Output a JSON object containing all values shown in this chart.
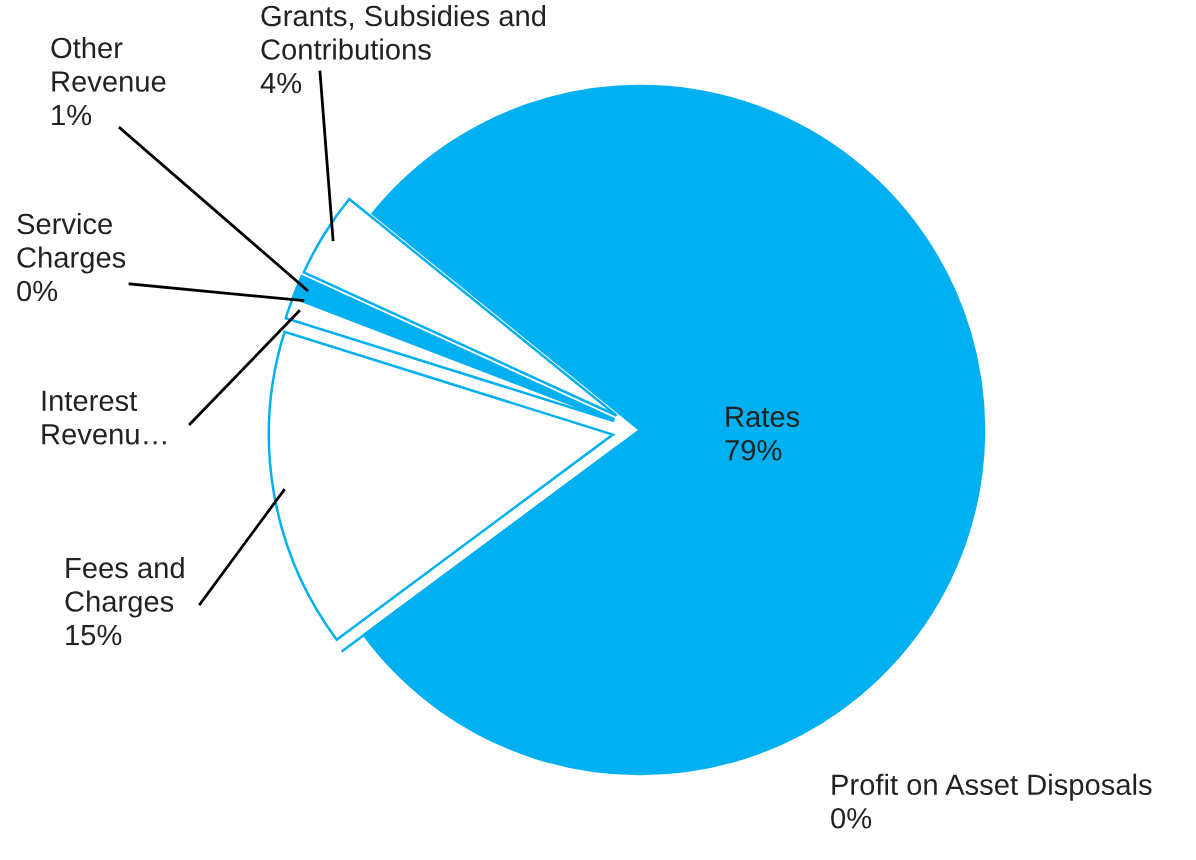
{
  "chart_data": {
    "type": "pie",
    "categories": [
      "Rates",
      "Profit on Asset Disposals",
      "Fees and\nCharges",
      "Interest\nRevenu…",
      "Service\nCharges",
      "Other\nRevenue",
      "Grants, Subsidies and\nContributions"
    ],
    "values": [
      79,
      0,
      15,
      1,
      0,
      1,
      4
    ],
    "value_labels": [
      "79%",
      "0%",
      "15%",
      null,
      "0%",
      "1%",
      "4%"
    ],
    "colors": [
      "#00b0f0",
      "#00b0f0",
      "#ffffff",
      "#ffffff",
      "#ffffff",
      "#00b0f0",
      "#ffffff"
    ]
  }
}
